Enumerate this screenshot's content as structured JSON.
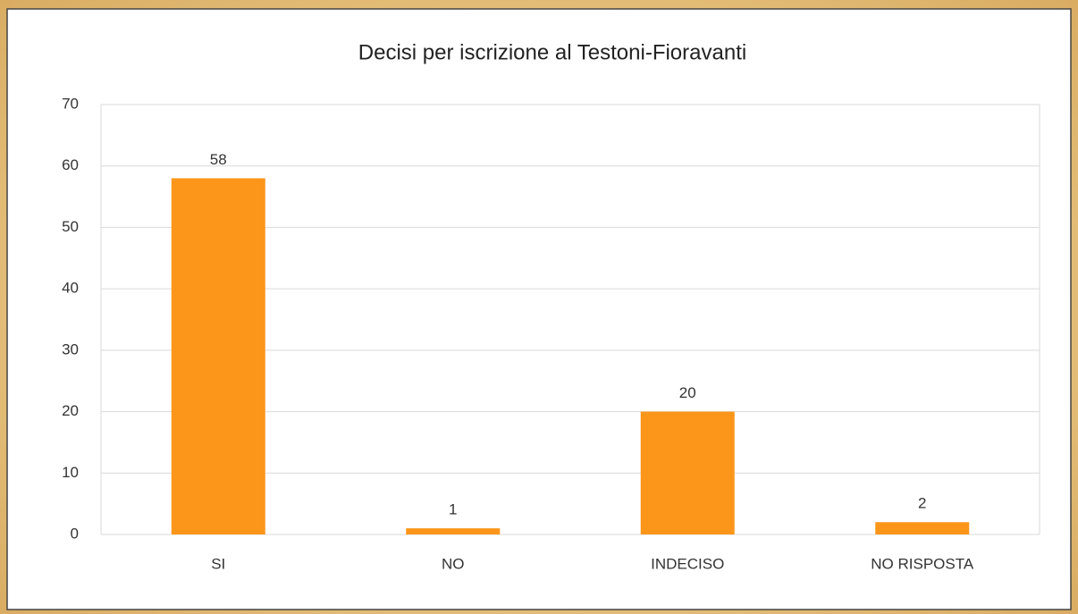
{
  "chart_data": {
    "type": "bar",
    "title": "Decisi per iscrizione al Testoni-Fioravanti",
    "categories": [
      "SI",
      "NO",
      "INDECISO",
      "NO RISPOSTA"
    ],
    "values": [
      58,
      1,
      20,
      2
    ],
    "color": "#fb961a",
    "ylim": [
      0,
      70
    ],
    "yticks": [
      0,
      10,
      20,
      30,
      40,
      50,
      60,
      70
    ],
    "grid": true
  }
}
